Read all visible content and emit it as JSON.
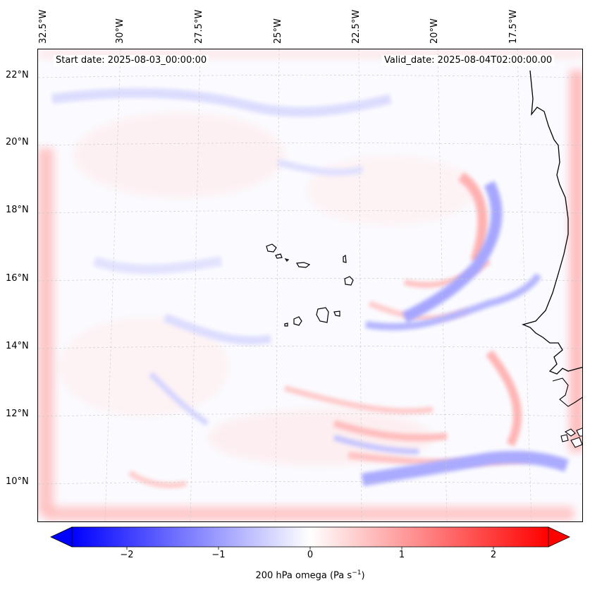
{
  "map": {
    "start_date": "Start date: 2025-08-03_00:00:00",
    "valid_date": "Valid_date: 2025-08-04T02:00:00.00",
    "lon_labels": [
      "32.5°W",
      "30°W",
      "27.5°W",
      "25°W",
      "22.5°W",
      "20°W",
      "17.5°W"
    ],
    "lat_labels": [
      "22°N",
      "20°N",
      "18°N",
      "16°N",
      "14°N",
      "12°N",
      "10°N"
    ],
    "variable": "200 hPa omega",
    "units": "Pa s",
    "units_exponent": "−1",
    "colors": {
      "min": "#0000ff",
      "mid": "#ffffff",
      "max": "#ff0000",
      "coast": "#000000"
    }
  },
  "colorbar": {
    "range": [
      -2.6,
      2.6
    ],
    "ticks": [
      -2,
      -1,
      0,
      1,
      2
    ],
    "tick_labels": [
      "−2",
      "−1",
      "0",
      "1",
      "2"
    ]
  }
}
